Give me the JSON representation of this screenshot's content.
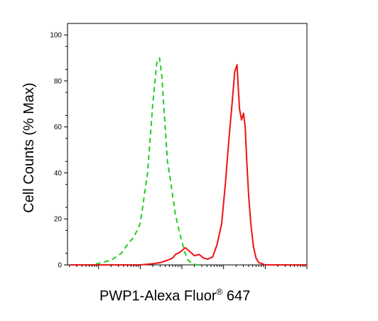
{
  "chart_data": {
    "type": "line",
    "title": "",
    "xlabel": "PWP1-Alexa Fluor",
    "xlabel_sup": "®",
    "xlabel_suffix": " 647",
    "ylabel": "Cell Counts (% Max)",
    "xscale": "log",
    "xlim": [
      1.8,
      1000000
    ],
    "ylim": [
      0,
      105
    ],
    "y_ticks": [
      0,
      20,
      40,
      60,
      80,
      100
    ],
    "legend": "none",
    "grid": false,
    "series": [
      {
        "color": "#22cc22",
        "style": "dashed",
        "x": [
          2.1,
          7,
          20,
          35,
          50,
          70,
          100,
          150,
          200,
          250,
          290,
          330,
          380,
          450,
          520,
          600,
          700,
          850,
          1000,
          1200,
          1400,
          1700,
          2200,
          3000
        ],
        "y": [
          0,
          0,
          2,
          5,
          9,
          12,
          18,
          40,
          70,
          88,
          90,
          82,
          65,
          45,
          38,
          30,
          22,
          15,
          10,
          5,
          2,
          1,
          0,
          0
        ]
      },
      {
        "color": "#ee1111",
        "style": "solid",
        "x": [
          2.1,
          50,
          100,
          200,
          300,
          450,
          600,
          700,
          900,
          1200,
          1500,
          2000,
          2600,
          3300,
          4200,
          5500,
          7000,
          9000,
          11000,
          13500,
          16000,
          18500,
          21000,
          24000,
          27000,
          30000,
          33000,
          36000,
          40000,
          45000,
          52000,
          60000,
          70000,
          85000,
          100000,
          150000,
          300000,
          1000000
        ],
        "y": [
          0,
          0,
          0,
          0.5,
          1,
          2,
          3,
          4.5,
          5.5,
          7.5,
          6,
          4,
          4.5,
          3,
          2.5,
          3.5,
          9,
          18,
          35,
          55,
          70,
          84,
          87,
          68,
          63,
          66,
          60,
          45,
          30,
          18,
          8,
          3,
          1,
          0.5,
          0,
          0,
          0,
          0
        ]
      }
    ]
  }
}
